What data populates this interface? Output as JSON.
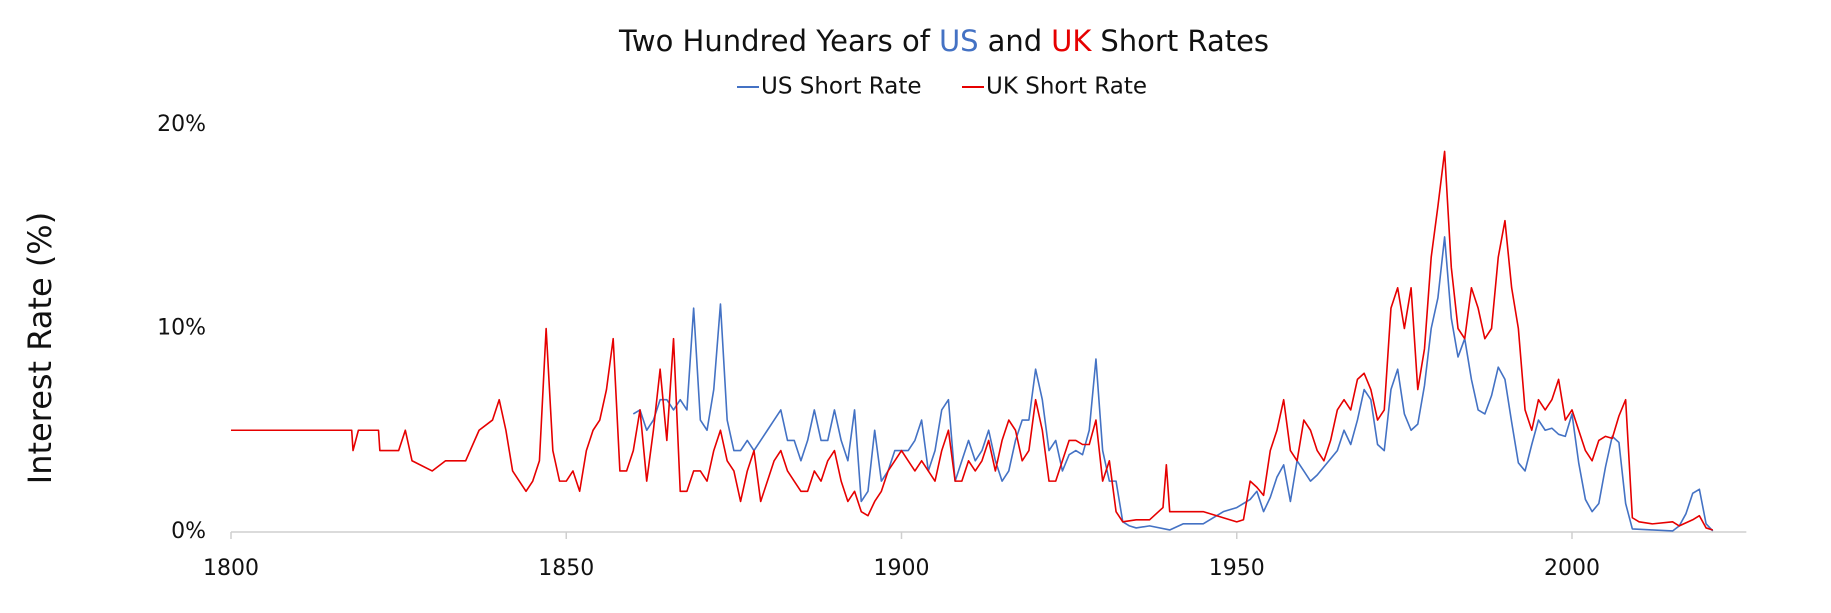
{
  "chart_data": {
    "type": "line",
    "title_parts": [
      {
        "text": "Two Hundred Years of",
        "color": "#111111"
      },
      {
        "text": "US",
        "color": "#4472c4"
      },
      {
        "text": "and",
        "color": "#111111"
      },
      {
        "text": "UK",
        "color": "#e60000"
      },
      {
        "text": "Short Rates",
        "color": "#111111"
      }
    ],
    "y_label": "Interest Rate (%)",
    "xlim": [
      1800,
      2026
    ],
    "xticks": [
      1800,
      1850,
      1900,
      1950,
      2000
    ],
    "ylim": [
      0,
      20
    ],
    "yticks": [
      {
        "value": 0,
        "label": "0%"
      },
      {
        "value": 10,
        "label": "10%"
      },
      {
        "value": 20,
        "label": "20%"
      }
    ],
    "grid": false,
    "legend": "top",
    "series": [
      {
        "name": "US Short Rate",
        "color": "#4472c4",
        "x": [
          1860,
          1861,
          1862,
          1863,
          1864,
          1865,
          1866,
          1867,
          1868,
          1869,
          1870,
          1871,
          1872,
          1873,
          1874,
          1875,
          1876,
          1877,
          1878,
          1879,
          1880,
          1881,
          1882,
          1883,
          1884,
          1885,
          1886,
          1887,
          1888,
          1889,
          1890,
          1891,
          1892,
          1893,
          1894,
          1895,
          1896,
          1897,
          1898,
          1899,
          1900,
          1901,
          1902,
          1903,
          1904,
          1905,
          1906,
          1907,
          1908,
          1909,
          1910,
          1911,
          1912,
          1913,
          1914,
          1915,
          1916,
          1917,
          1918,
          1919,
          1920,
          1921,
          1922,
          1923,
          1924,
          1925,
          1926,
          1927,
          1928,
          1929,
          1930,
          1931,
          1932,
          1933,
          1934,
          1935,
          1937,
          1940,
          1942,
          1945,
          1948,
          1950,
          1952,
          1953,
          1954,
          1955,
          1956,
          1957,
          1958,
          1959,
          1960,
          1961,
          1962,
          1963,
          1964,
          1965,
          1966,
          1967,
          1968,
          1969,
          1970,
          1971,
          1972,
          1973,
          1974,
          1975,
          1976,
          1977,
          1978,
          1979,
          1980,
          1981,
          1982,
          1983,
          1984,
          1985,
          1986,
          1987,
          1988,
          1989,
          1990,
          1991,
          1992,
          1993,
          1994,
          1995,
          1996,
          1997,
          1998,
          1999,
          2000,
          2001,
          2002,
          2003,
          2004,
          2005,
          2006,
          2007,
          2008,
          2009,
          2012,
          2015,
          2016,
          2017,
          2018,
          2019,
          2020,
          2021
        ],
        "values": [
          5.8,
          6,
          5,
          5.5,
          6.5,
          6.5,
          6,
          6.5,
          6,
          11,
          5.5,
          5,
          7,
          11.2,
          5.5,
          4,
          4,
          4.5,
          4,
          4.5,
          5,
          5.5,
          6,
          4.5,
          4.5,
          3.5,
          4.5,
          6,
          4.5,
          4.5,
          6,
          4.5,
          3.5,
          6,
          1.5,
          2,
          5,
          2.5,
          3,
          4,
          4,
          4,
          4.5,
          5.5,
          3,
          4,
          6,
          6.5,
          2.5,
          3.5,
          4.5,
          3.5,
          4,
          5,
          3.5,
          2.5,
          3,
          4.5,
          5.5,
          5.5,
          8,
          6.5,
          4,
          4.5,
          3,
          3.8,
          4,
          3.8,
          5,
          8.5,
          4,
          2.5,
          2.5,
          0.5,
          0.3,
          0.2,
          0.3,
          0.1,
          0.4,
          0.4,
          1,
          1.2,
          1.6,
          2,
          1,
          1.7,
          2.7,
          3.3,
          1.5,
          3.5,
          3,
          2.5,
          2.8,
          3.2,
          3.6,
          4,
          5,
          4.3,
          5.5,
          7,
          6.5,
          4.3,
          4,
          7,
          8,
          5.8,
          5,
          5.3,
          7.2,
          10,
          11.5,
          14.5,
          10.5,
          8.6,
          9.5,
          7.5,
          6,
          5.8,
          6.7,
          8.1,
          7.5,
          5.4,
          3.4,
          3,
          4.3,
          5.5,
          5,
          5.1,
          4.8,
          4.7,
          5.8,
          3.4,
          1.6,
          1,
          1.4,
          3.2,
          4.7,
          4.4,
          1.4,
          0.15,
          0.1,
          0.05,
          0.3,
          0.9,
          1.9,
          2.1,
          0.4,
          0.05
        ]
      },
      {
        "name": "UK Short Rate",
        "color": "#e60000",
        "x": [
          1800,
          1818,
          1818.2,
          1819,
          1822,
          1822.2,
          1825,
          1826,
          1827,
          1830,
          1832,
          1835,
          1837,
          1839,
          1840,
          1841,
          1842,
          1843,
          1844,
          1845,
          1846,
          1847,
          1848,
          1849,
          1850,
          1851,
          1852,
          1853,
          1854,
          1855,
          1856,
          1857,
          1858,
          1859,
          1860,
          1861,
          1862,
          1863,
          1864,
          1865,
          1866,
          1867,
          1868,
          1869,
          1870,
          1871,
          1872,
          1873,
          1874,
          1875,
          1876,
          1877,
          1878,
          1879,
          1880,
          1881,
          1882,
          1883,
          1884,
          1885,
          1886,
          1887,
          1888,
          1889,
          1890,
          1891,
          1892,
          1893,
          1894,
          1895,
          1896,
          1897,
          1898,
          1899,
          1900,
          1901,
          1902,
          1903,
          1904,
          1905,
          1906,
          1907,
          1908,
          1909,
          1910,
          1911,
          1912,
          1913,
          1914,
          1915,
          1916,
          1917,
          1918,
          1919,
          1920,
          1921,
          1922,
          1923,
          1924,
          1925,
          1926,
          1927,
          1928,
          1929,
          1930,
          1931,
          1932,
          1933,
          1935,
          1937,
          1939,
          1939.5,
          1940,
          1945,
          1950,
          1951,
          1952,
          1953,
          1954,
          1955,
          1956,
          1957,
          1958,
          1959,
          1960,
          1961,
          1962,
          1963,
          1964,
          1965,
          1966,
          1967,
          1968,
          1969,
          1970,
          1971,
          1972,
          1973,
          1974,
          1975,
          1976,
          1977,
          1978,
          1979,
          1980,
          1981,
          1982,
          1983,
          1984,
          1985,
          1986,
          1987,
          1988,
          1989,
          1990,
          1991,
          1992,
          1993,
          1994,
          1995,
          1996,
          1997,
          1998,
          1999,
          2000,
          2001,
          2002,
          2003,
          2004,
          2005,
          2006,
          2007,
          2008,
          2009,
          2010,
          2012,
          2015,
          2016,
          2018,
          2019,
          2020,
          2021
        ],
        "values": [
          5,
          5,
          4,
          5,
          5,
          4,
          4,
          5,
          3.5,
          3,
          3.5,
          3.5,
          5,
          5.5,
          6.5,
          5,
          3,
          2.5,
          2,
          2.5,
          3.5,
          10,
          4,
          2.5,
          2.5,
          3,
          2,
          4,
          5,
          5.5,
          7,
          9.5,
          3,
          3,
          4,
          6,
          2.5,
          5,
          8,
          4.5,
          9.5,
          2,
          2,
          3,
          3,
          2.5,
          4,
          5,
          3.5,
          3,
          1.5,
          3,
          4,
          1.5,
          2.5,
          3.5,
          4,
          3,
          2.5,
          2,
          2,
          3,
          2.5,
          3.5,
          4,
          2.5,
          1.5,
          2,
          1,
          0.8,
          1.5,
          2,
          3,
          3.5,
          4,
          3.5,
          3,
          3.5,
          3,
          2.5,
          4,
          5,
          2.5,
          2.5,
          3.5,
          3,
          3.5,
          4.5,
          3,
          4.5,
          5.5,
          5,
          3.5,
          4,
          6.5,
          5,
          2.5,
          2.5,
          3.5,
          4.5,
          4.5,
          4.3,
          4.3,
          5.5,
          2.5,
          3.5,
          1,
          0.5,
          0.6,
          0.6,
          1.2,
          3.3,
          1,
          1,
          0.5,
          0.6,
          2.5,
          2.2,
          1.8,
          4,
          5,
          6.5,
          4,
          3.5,
          5.5,
          5,
          4,
          3.5,
          4.5,
          6,
          6.5,
          6,
          7.5,
          7.8,
          7,
          5.5,
          6,
          11,
          12,
          10,
          12,
          7,
          9,
          13.5,
          16,
          18.7,
          13,
          10,
          9.5,
          12,
          11,
          9.5,
          10,
          13.5,
          15.3,
          12,
          10,
          6,
          5,
          6.5,
          6,
          6.5,
          7.5,
          5.5,
          6,
          5,
          4,
          3.5,
          4.5,
          4.7,
          4.6,
          5.7,
          6.5,
          0.7,
          0.5,
          0.4,
          0.5,
          0.3,
          0.6,
          0.8,
          0.2,
          0.1
        ]
      }
    ]
  }
}
